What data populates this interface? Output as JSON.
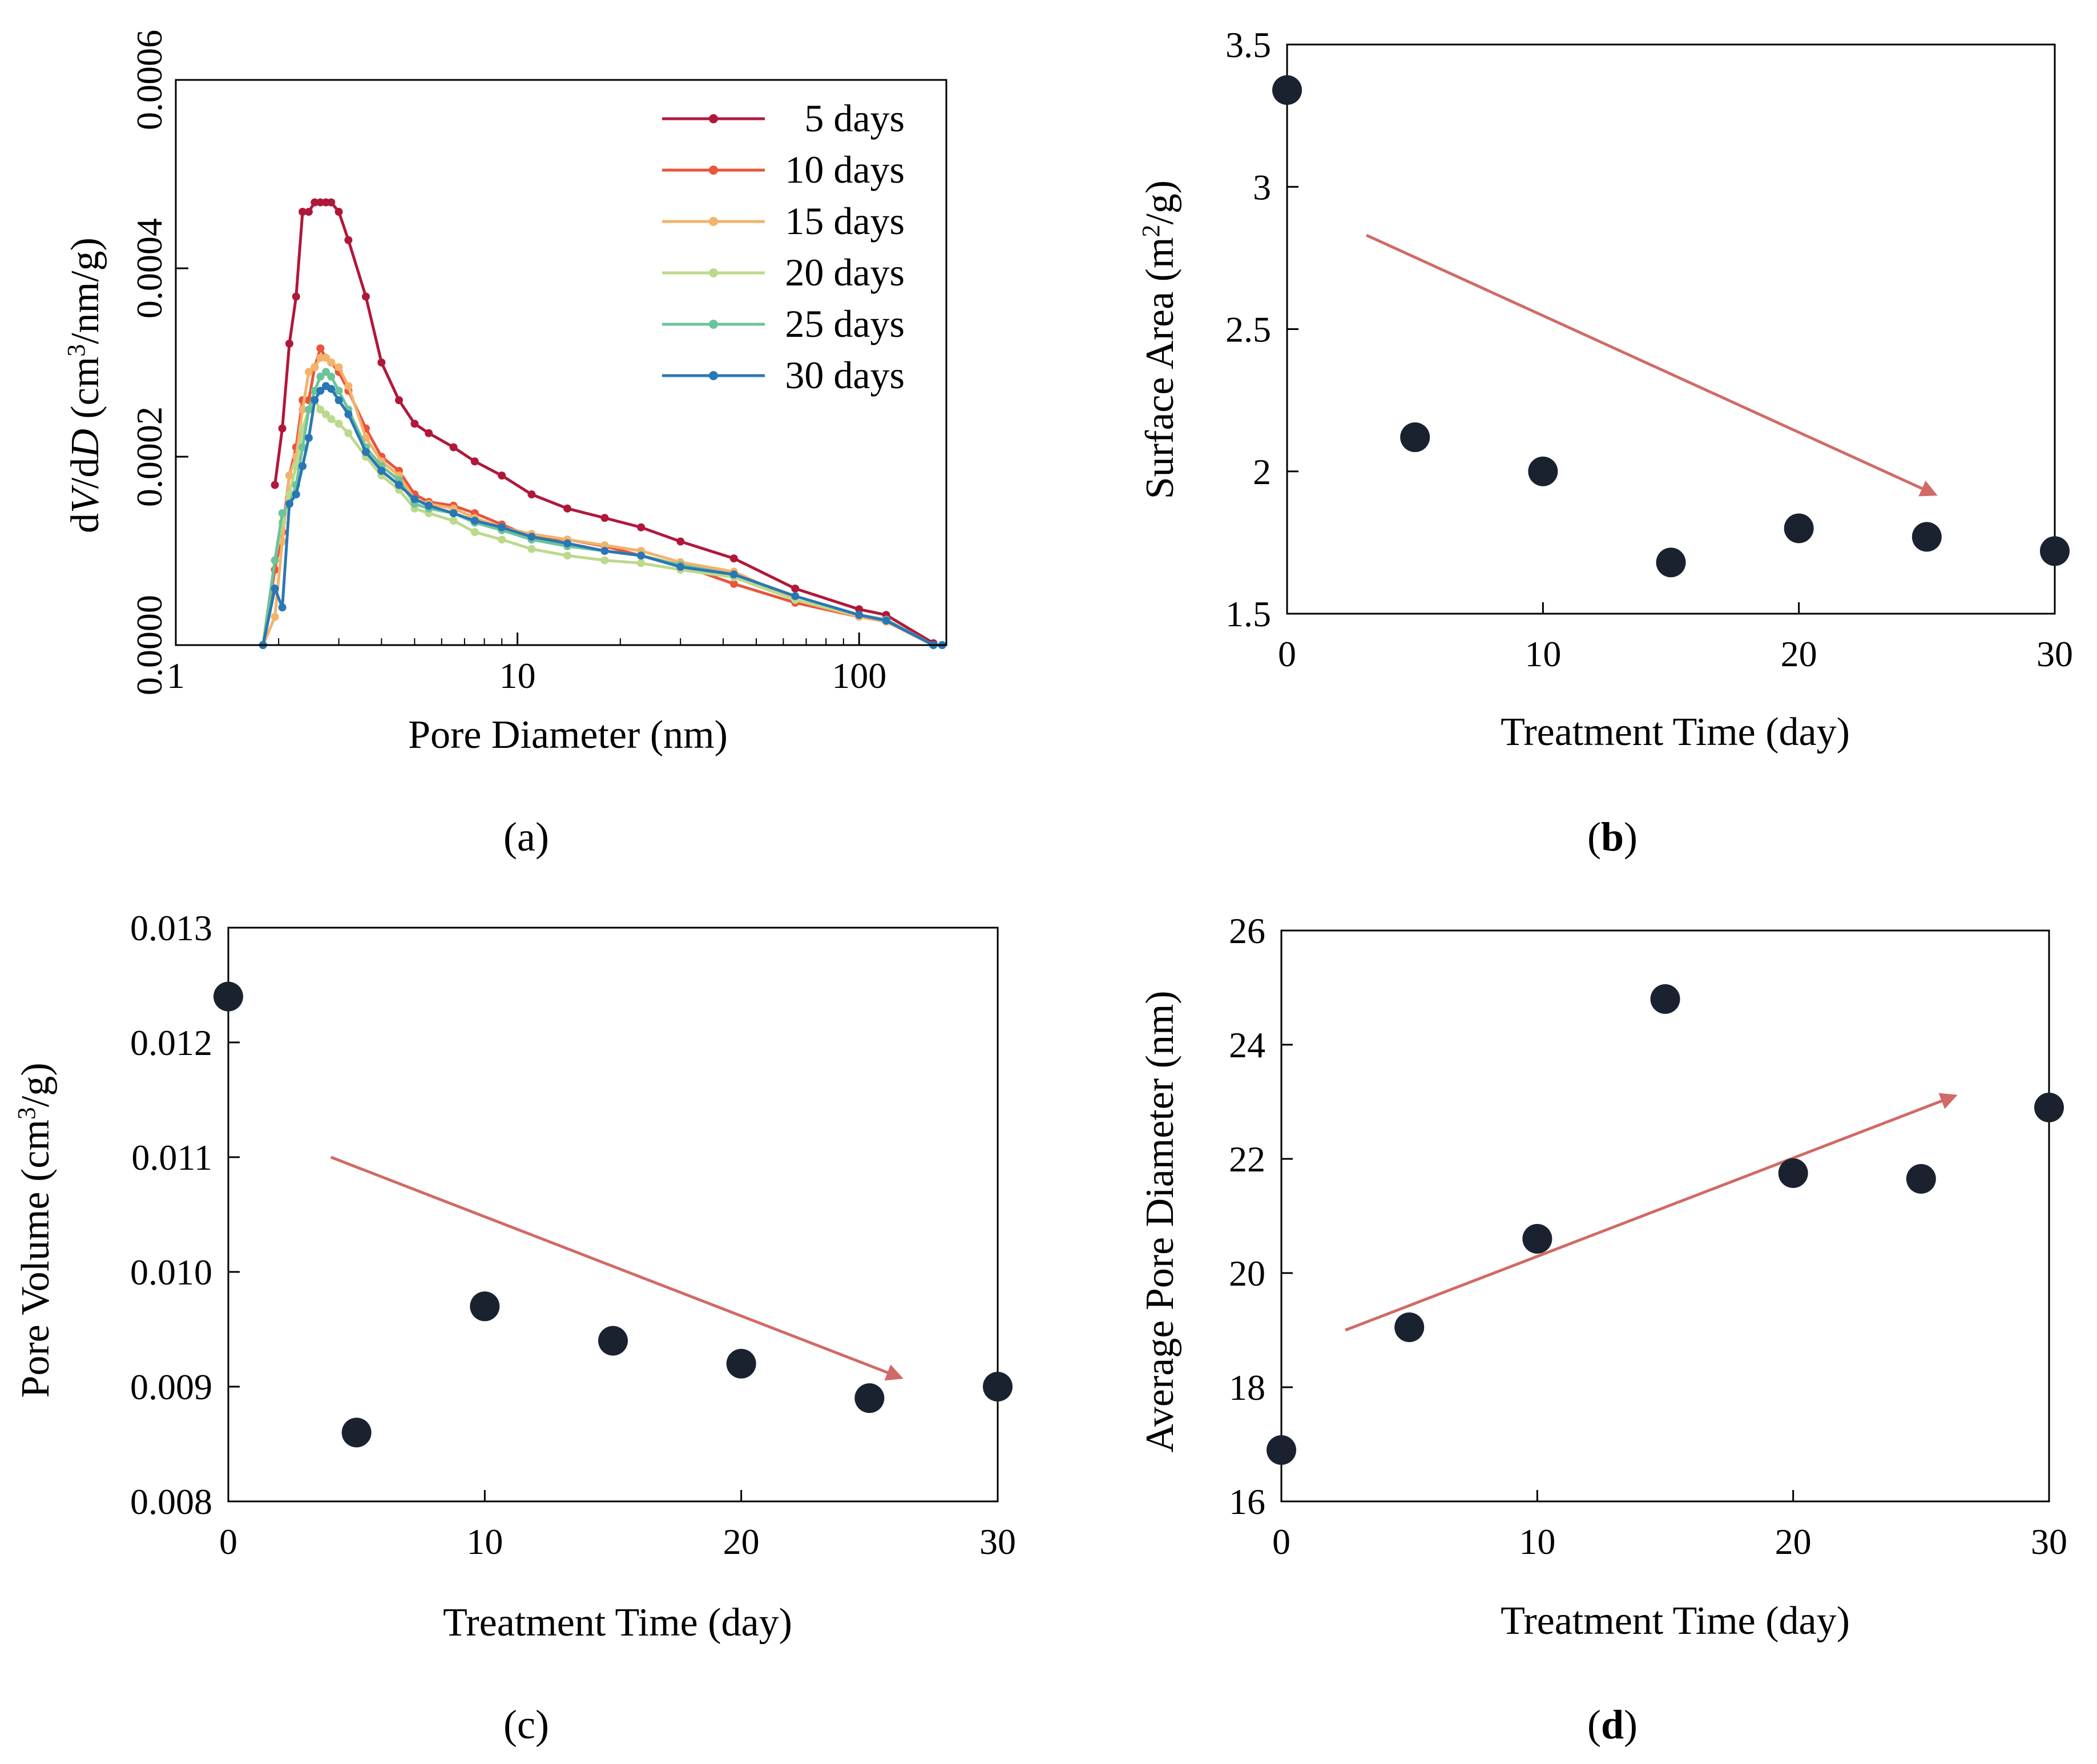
{
  "colors": {
    "five_days": "#b0183a",
    "ten_days": "#e8553a",
    "fifteen_days": "#f3b36b",
    "twenty_days": "#bcd98c",
    "twentyfive_days": "#6cc49a",
    "thirty_days": "#2a77b5",
    "points": "#1a2230",
    "arrow": "#d06a66"
  },
  "chart_data": [
    {
      "type": "line",
      "panel_label": "a",
      "xlabel_pre": "Pore Diameter (nm)",
      "ylabel_parts": {
        "a": "d",
        "b": "V",
        "c": "/d",
        "d": "D",
        "e": " (cm",
        "f": "3",
        "g": "/nm/g)"
      },
      "xscale": "log",
      "xlim": [
        1,
        180
      ],
      "ylim": [
        0,
        0.0006
      ],
      "x_ticks": [
        "1",
        "10",
        "100"
      ],
      "y_ticks": [
        "0.0000",
        "0.0002",
        "0.0004",
        "0.0006"
      ],
      "legend_position": "top-right",
      "x": [
        1.8,
        1.95,
        2.05,
        2.15,
        2.25,
        2.35,
        2.45,
        2.55,
        2.65,
        2.75,
        2.85,
        3.0,
        3.2,
        3.6,
        4.0,
        4.5,
        5.0,
        5.5,
        6.5,
        7.5,
        9.0,
        11,
        14,
        18,
        23,
        30,
        43,
        65,
        100,
        120,
        165,
        175
      ],
      "series": [
        {
          "name": "5 days",
          "color_key": "five_days",
          "values": [
            null,
            0.00017,
            0.00023,
            0.00032,
            0.00037,
            0.00046,
            0.00046,
            0.00047,
            0.00047,
            0.00047,
            0.00047,
            0.00046,
            0.00043,
            0.00037,
            0.0003,
            0.00026,
            0.000235,
            0.000225,
            0.00021,
            0.000195,
            0.00018,
            0.00016,
            0.000145,
            0.000135,
            0.000125,
            0.00011,
            9.2e-05,
            6e-05,
            3.8e-05,
            3.2e-05,
            2e-06,
            null
          ]
        },
        {
          "name": "10 days",
          "color_key": "ten_days",
          "values": [
            0.0,
            8e-05,
            0.00012,
            0.00018,
            0.00021,
            0.00026,
            0.00026,
            0.000295,
            0.000315,
            0.000305,
            0.0003,
            0.00029,
            0.00027,
            0.00023,
            0.0002,
            0.000185,
            0.00016,
            0.000152,
            0.000148,
            0.00014,
            0.000128,
            0.000115,
            0.000112,
            0.000105,
            9.5e-05,
            8.5e-05,
            6.5e-05,
            4.5e-05,
            3e-05,
            2.5e-05,
            0.0,
            0.0
          ]
        },
        {
          "name": "15 days",
          "color_key": "fifteen_days",
          "values": [
            0.0,
            3e-05,
            0.00011,
            0.00018,
            0.0002,
            0.00025,
            0.00029,
            0.000295,
            0.000305,
            0.000305,
            0.0003,
            0.000295,
            0.000275,
            0.00022,
            0.000195,
            0.00018,
            0.000155,
            0.00015,
            0.000145,
            0.000135,
            0.000125,
            0.000118,
            0.000112,
            0.000106,
            0.0001,
            8.8e-05,
            7.8e-05,
            4.8e-05,
            3e-05,
            2.5e-05,
            0.0,
            0.0
          ]
        },
        {
          "name": "20 days",
          "color_key": "twenty_days",
          "values": [
            0.0,
            9e-05,
            0.00013,
            0.00016,
            0.00019,
            0.00023,
            0.00025,
            0.00026,
            0.00025,
            0.000245,
            0.00024,
            0.000235,
            0.000225,
            0.0002,
            0.00018,
            0.000165,
            0.000145,
            0.00014,
            0.000132,
            0.00012,
            0.000112,
            0.000102,
            9.5e-05,
            9e-05,
            8.7e-05,
            8e-05,
            7.2e-05,
            4.8e-05,
            3.2e-05,
            2.7e-05,
            0.0,
            0.0
          ]
        },
        {
          "name": "25 days",
          "color_key": "twentyfive_days",
          "values": [
            0.0,
            9e-05,
            0.00014,
            0.00015,
            0.00017,
            0.00021,
            0.00025,
            0.00027,
            0.000285,
            0.00029,
            0.000285,
            0.00027,
            0.00025,
            0.00021,
            0.00019,
            0.000175,
            0.00015,
            0.000145,
            0.00014,
            0.00013,
            0.000122,
            0.000112,
            0.000105,
            0.0001,
            9.5e-05,
            8.5e-05,
            7.5e-05,
            5.2e-05,
            3.2e-05,
            2.7e-05,
            0.0,
            0.0
          ]
        },
        {
          "name": "30 days",
          "color_key": "thirty_days",
          "values": [
            0.0,
            6e-05,
            4e-05,
            0.00015,
            0.00016,
            0.00019,
            0.00022,
            0.00026,
            0.00027,
            0.000275,
            0.000272,
            0.00026,
            0.000245,
            0.000205,
            0.000185,
            0.00017,
            0.000155,
            0.000148,
            0.00014,
            0.000132,
            0.000125,
            0.000115,
            0.000108,
            0.0001,
            9.5e-05,
            8.3e-05,
            7.5e-05,
            5.2e-05,
            3.2e-05,
            2.6e-05,
            0.0,
            0.0
          ]
        }
      ]
    },
    {
      "type": "scatter",
      "panel_label": "b",
      "xlabel": "Treatment Time (day)",
      "ylabel_pre": "Surface Area (m",
      "ylabel_sup": "2",
      "ylabel_post": "/g)",
      "xlim": [
        0,
        30
      ],
      "ylim": [
        1.5,
        3.5
      ],
      "x_ticks": [
        "0",
        "10",
        "20",
        "30"
      ],
      "y_ticks": [
        "1.5",
        "2",
        "2.5",
        "3",
        "3.5"
      ],
      "x": [
        0,
        5,
        10,
        15,
        20,
        25,
        30
      ],
      "values": [
        3.34,
        2.12,
        2.0,
        1.68,
        1.8,
        1.77,
        1.72
      ],
      "trend_arrow": {
        "from": [
          3.1,
          2.83
        ],
        "to": [
          25.3,
          1.92
        ]
      }
    },
    {
      "type": "scatter",
      "panel_label": "c",
      "xlabel": "Treatment Time (day)",
      "ylabel_pre": "Pore Volume (cm",
      "ylabel_sup": "3",
      "ylabel_post": "/g)",
      "xlim": [
        0,
        30
      ],
      "ylim": [
        0.008,
        0.013
      ],
      "x_ticks": [
        "0",
        "10",
        "20",
        "30"
      ],
      "y_ticks": [
        "0.008",
        "0.009",
        "0.010",
        "0.011",
        "0.012",
        "0.013"
      ],
      "x": [
        0,
        5,
        10,
        15,
        20,
        25,
        30
      ],
      "values": [
        0.0124,
        0.0086,
        0.0097,
        0.0094,
        0.0092,
        0.0089,
        0.009
      ],
      "trend_arrow": {
        "from": [
          4,
          0.011
        ],
        "to": [
          26.2,
          0.00908
        ]
      }
    },
    {
      "type": "scatter",
      "panel_label": "d",
      "xlabel": "Treatment Time (day)",
      "ylabel": "Average Pore Diameter (nm)",
      "xlim": [
        0,
        30
      ],
      "ylim": [
        16,
        26
      ],
      "x_ticks": [
        "0",
        "10",
        "20",
        "30"
      ],
      "y_ticks": [
        "16",
        "18",
        "20",
        "22",
        "24",
        "26"
      ],
      "x": [
        0,
        5,
        10,
        15,
        20,
        25,
        30
      ],
      "values": [
        16.9,
        19.05,
        20.6,
        24.8,
        21.75,
        21.65,
        22.9
      ],
      "trend_arrow": {
        "from": [
          2.5,
          19.0
        ],
        "to": [
          26.3,
          23.1
        ]
      }
    }
  ],
  "captions": {
    "a": "a",
    "b": "b",
    "c": "c",
    "d": "d"
  }
}
